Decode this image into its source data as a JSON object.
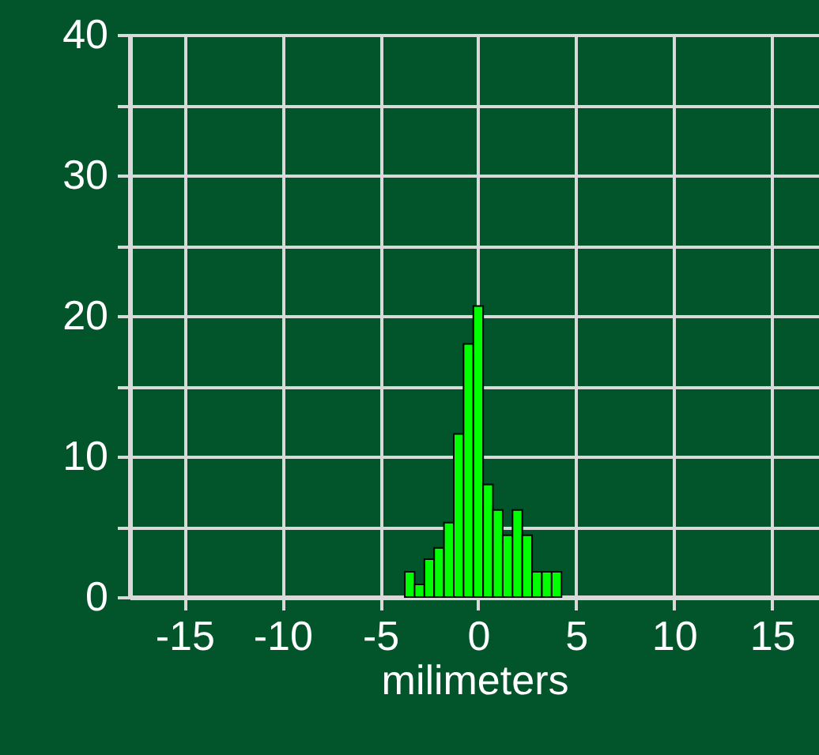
{
  "chart_data": {
    "type": "histogram",
    "xlabel": "milimeters",
    "bins": [
      -3.75,
      -3.25,
      -2.75,
      -2.25,
      -1.75,
      -1.25,
      -0.75,
      -0.25,
      0.25,
      0.75,
      1.25,
      1.75,
      2.25,
      2.75,
      3.25,
      3.75,
      4.25
    ],
    "values": [
      1.8,
      0.9,
      2.7,
      3.5,
      5.3,
      11.6,
      18.0,
      20.7,
      8.0,
      6.2,
      4.4,
      6.2,
      4.4,
      1.8,
      1.8,
      1.8
    ],
    "color": "#00ff00",
    "xlim": [
      -17.8,
      17.4
    ],
    "xticks": [
      -15,
      -10,
      -5,
      0,
      5,
      10,
      15
    ],
    "ylim": [
      0,
      40
    ],
    "yticks": [
      0,
      {
        "value": 5,
        "label": null
      },
      10,
      {
        "value": 15,
        "label": null
      },
      20,
      {
        "value": 25,
        "label": null
      },
      30,
      {
        "value": 35,
        "label": null
      },
      40
    ],
    "grid": true
  }
}
